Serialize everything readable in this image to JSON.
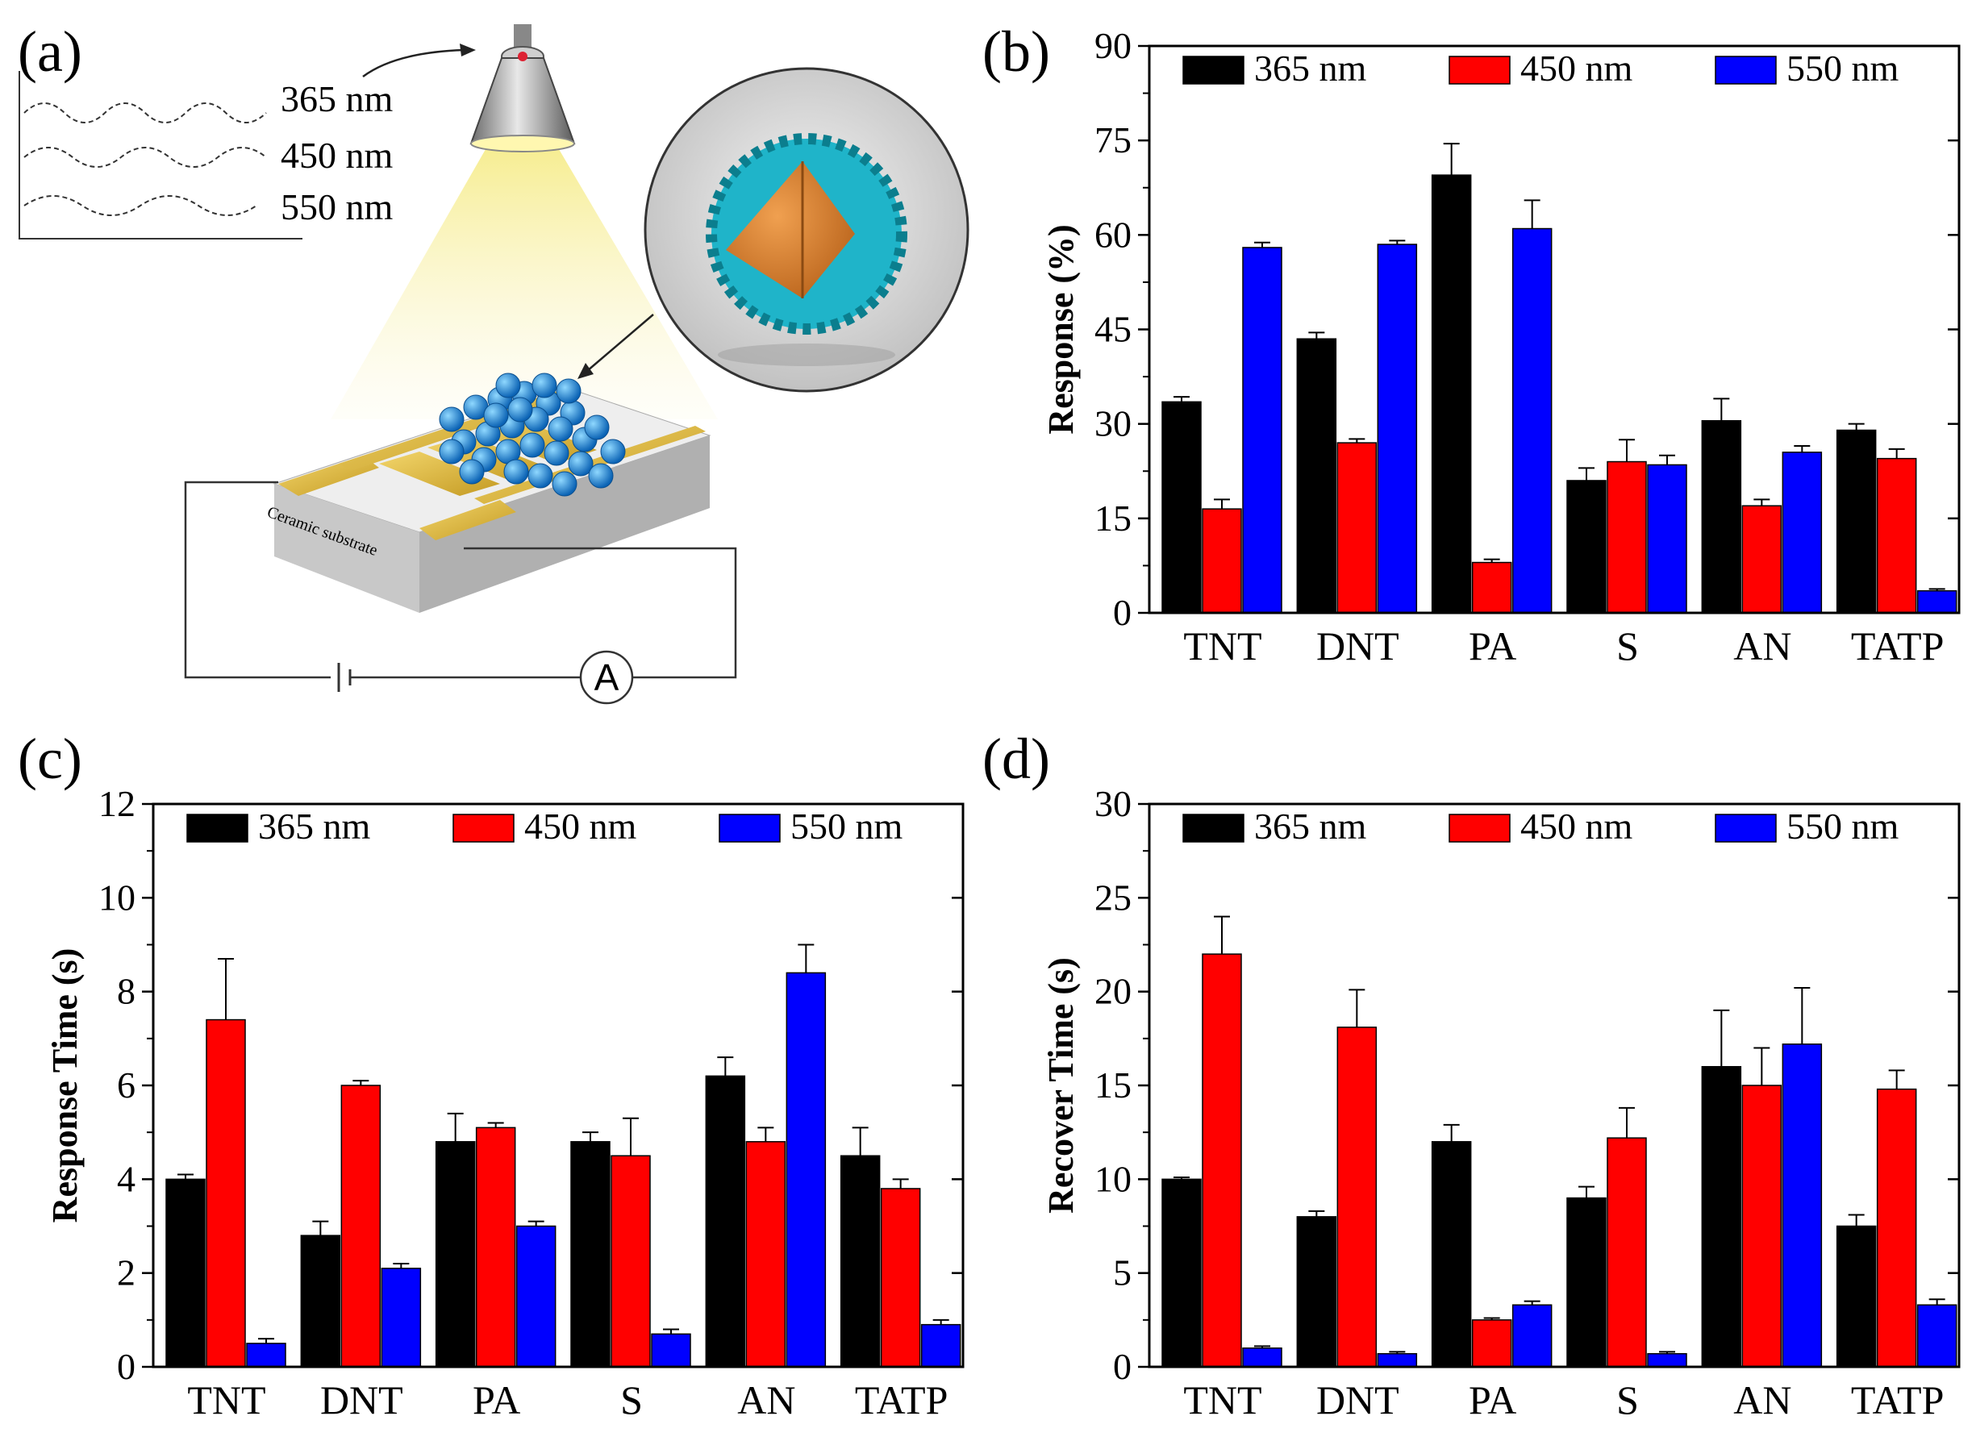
{
  "figure": {
    "panel_a": {
      "label": "(a)",
      "wavelengths": [
        "365 nm",
        "450 nm",
        "550 nm"
      ],
      "substrate_label": "Ceramic substrate",
      "ammeter_label": "A"
    }
  },
  "colors": {
    "s365": "#000000",
    "s450": "#ff0000",
    "s550": "#0000ff"
  },
  "chart_data": [
    {
      "panel": "(b)",
      "type": "bar",
      "title": "",
      "xlabel": "",
      "ylabel": "Response (%)",
      "ylim": [
        0,
        90
      ],
      "yticks": [
        0,
        15,
        30,
        45,
        60,
        75,
        90
      ],
      "categories": [
        "TNT",
        "DNT",
        "PA",
        "S",
        "AN",
        "TATP"
      ],
      "series": [
        {
          "name": "365 nm",
          "values": [
            33.5,
            43.5,
            69.5,
            21.0,
            30.5,
            29.0
          ],
          "errors": [
            0.8,
            1.0,
            5.0,
            2.0,
            3.5,
            1.0
          ]
        },
        {
          "name": "450 nm",
          "values": [
            16.5,
            27.0,
            8.0,
            24.0,
            17.0,
            24.5
          ],
          "errors": [
            1.5,
            0.6,
            0.5,
            3.5,
            1.0,
            1.5
          ]
        },
        {
          "name": "550 nm",
          "values": [
            58.0,
            58.5,
            61.0,
            23.5,
            25.5,
            3.5
          ],
          "errors": [
            0.8,
            0.6,
            4.5,
            1.5,
            1.0,
            0.3
          ]
        }
      ],
      "legend": "top"
    },
    {
      "panel": "(c)",
      "type": "bar",
      "title": "",
      "xlabel": "",
      "ylabel": "Response Time (s)",
      "ylim": [
        0,
        12
      ],
      "yticks": [
        0,
        2,
        4,
        6,
        8,
        10,
        12
      ],
      "categories": [
        "TNT",
        "DNT",
        "PA",
        "S",
        "AN",
        "TATP"
      ],
      "series": [
        {
          "name": "365 nm",
          "values": [
            4.0,
            2.8,
            4.8,
            4.8,
            6.2,
            4.5
          ],
          "errors": [
            0.1,
            0.3,
            0.6,
            0.2,
            0.4,
            0.6
          ]
        },
        {
          "name": "450 nm",
          "values": [
            7.4,
            6.0,
            5.1,
            4.5,
            4.8,
            3.8
          ],
          "errors": [
            1.3,
            0.1,
            0.1,
            0.8,
            0.3,
            0.2
          ]
        },
        {
          "name": "550 nm",
          "values": [
            0.5,
            2.1,
            3.0,
            0.7,
            8.4,
            0.9
          ],
          "errors": [
            0.1,
            0.1,
            0.1,
            0.1,
            0.6,
            0.1
          ]
        }
      ],
      "legend": "top"
    },
    {
      "panel": "(d)",
      "type": "bar",
      "title": "",
      "xlabel": "",
      "ylabel": "Recover Time (s)",
      "ylim": [
        0,
        30
      ],
      "yticks": [
        0,
        5,
        10,
        15,
        20,
        25,
        30
      ],
      "categories": [
        "TNT",
        "DNT",
        "PA",
        "S",
        "AN",
        "TATP"
      ],
      "series": [
        {
          "name": "365 nm",
          "values": [
            10.0,
            8.0,
            12.0,
            9.0,
            16.0,
            7.5
          ],
          "errors": [
            0.1,
            0.3,
            0.9,
            0.6,
            3.0,
            0.6
          ]
        },
        {
          "name": "450 nm",
          "values": [
            22.0,
            18.1,
            2.5,
            12.2,
            15.0,
            14.8
          ],
          "errors": [
            2.0,
            2.0,
            0.1,
            1.6,
            2.0,
            1.0
          ]
        },
        {
          "name": "550 nm",
          "values": [
            1.0,
            0.7,
            3.3,
            0.7,
            17.2,
            3.3
          ],
          "errors": [
            0.1,
            0.1,
            0.2,
            0.1,
            3.0,
            0.3
          ]
        }
      ],
      "legend": "top"
    }
  ]
}
